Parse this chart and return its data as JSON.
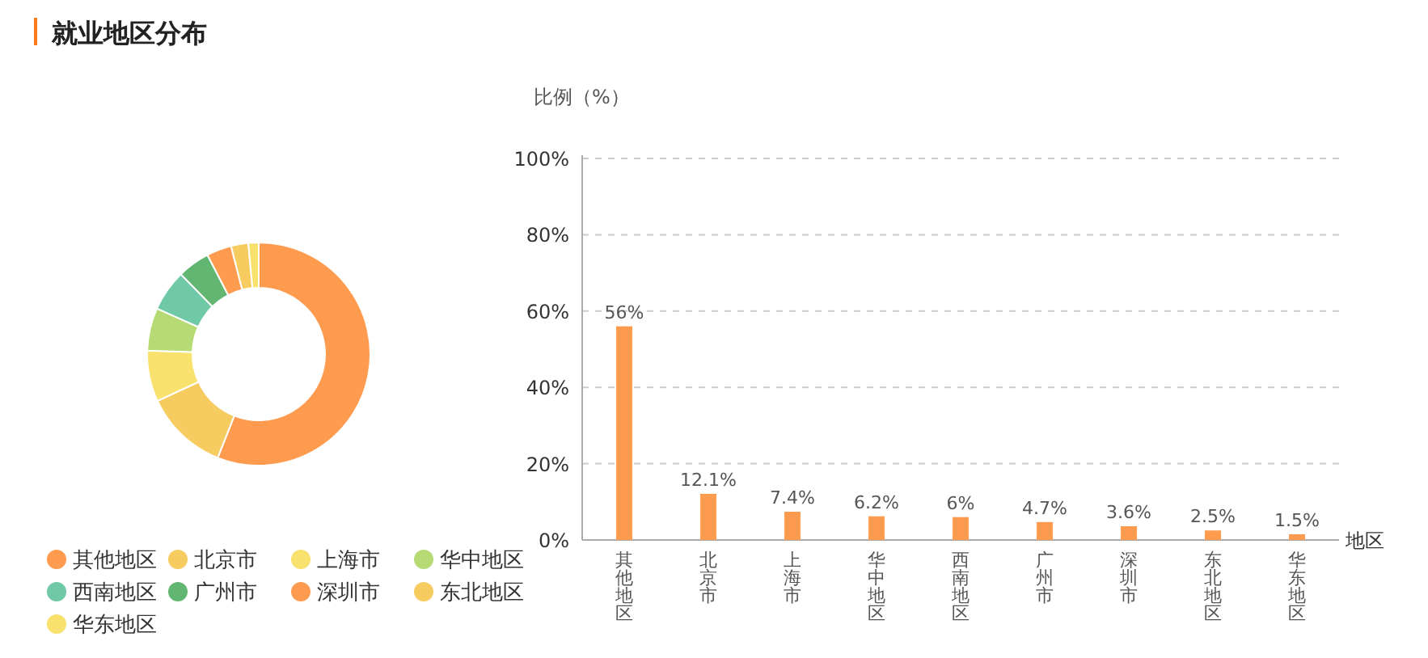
{
  "chart_data": [
    {
      "type": "donut",
      "title": "就业地区分布",
      "categories": [
        "其他地区",
        "北京市",
        "上海市",
        "华中地区",
        "西南地区",
        "广州市",
        "深圳市",
        "东北地区",
        "华东地区"
      ],
      "values": [
        56,
        12.1,
        7.4,
        6.2,
        6,
        4.7,
        3.6,
        2.5,
        1.5
      ],
      "colors": [
        "#ff9b4e",
        "#f6cb60",
        "#f8e16c",
        "#b6da74",
        "#6fc8a6",
        "#63b672",
        "#ff9b4e",
        "#f6cb60",
        "#f8e16c"
      ],
      "legend": "bottom"
    },
    {
      "type": "bar",
      "ylabel": "比例（%）",
      "xlabel": "地区",
      "categories": [
        "其他地区",
        "北京市",
        "上海市",
        "华中地区",
        "西南地区",
        "广州市",
        "深圳市",
        "东北地区",
        "华东地区"
      ],
      "values": [
        56,
        12.1,
        7.4,
        6.2,
        6,
        4.7,
        3.6,
        2.5,
        1.5
      ],
      "value_labels": [
        "56%",
        "12.1%",
        "7.4%",
        "6.2%",
        "6%",
        "4.7%",
        "3.6%",
        "2.5%",
        "1.5%"
      ],
      "color": "#ff9b4e",
      "ylim": [
        0,
        100
      ],
      "yticks": [
        {
          "value": 0,
          "label": "0%"
        },
        {
          "value": 20,
          "label": "20%"
        },
        {
          "value": 40,
          "label": "40%"
        },
        {
          "value": 60,
          "label": "60%"
        },
        {
          "value": 80,
          "label": "80%"
        },
        {
          "value": 100,
          "label": "100%"
        }
      ],
      "grid": "y"
    }
  ]
}
